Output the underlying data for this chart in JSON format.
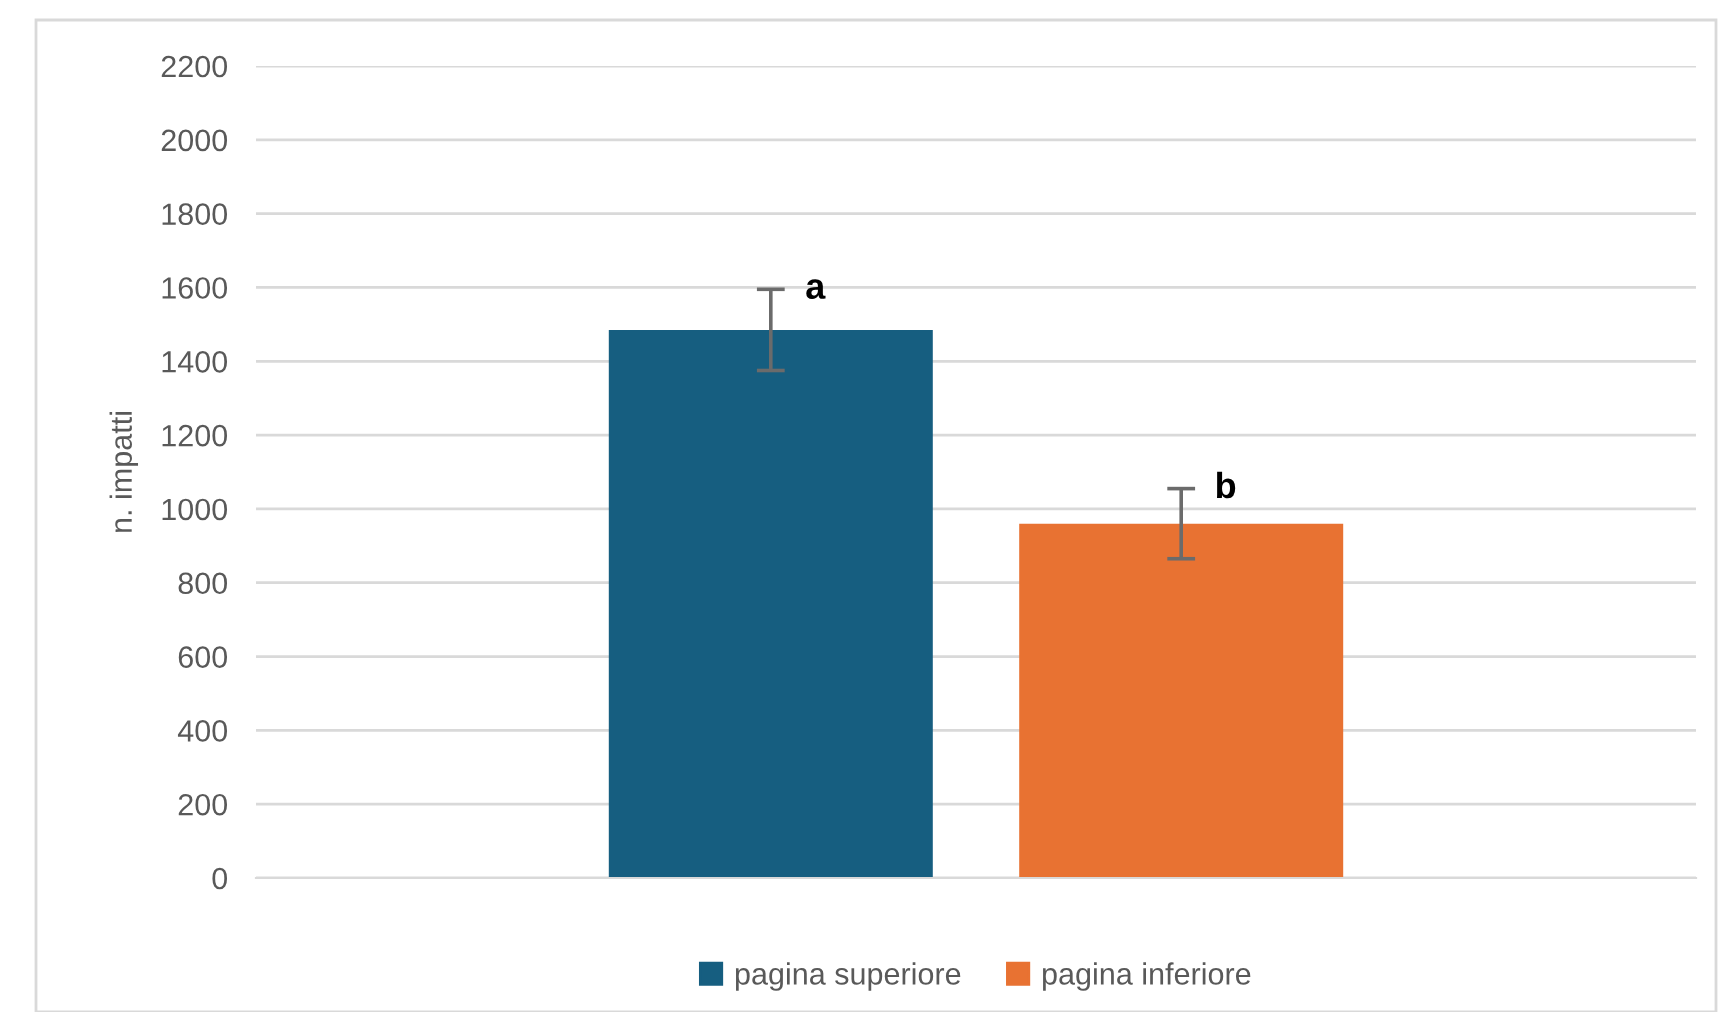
{
  "chart_data": {
    "type": "bar",
    "ylabel": "n. impatti",
    "categories": [
      null
    ],
    "series": [
      {
        "name": "pagina superiore",
        "color": "#165e80",
        "values": [
          1485
        ],
        "errors": [
          110
        ]
      },
      {
        "name": "pagina inferiore",
        "color": "#e87232",
        "values": [
          960
        ],
        "errors": [
          95
        ]
      }
    ],
    "annotations": [
      "a",
      "b"
    ],
    "ylim": [
      0,
      2200
    ],
    "yticks": [
      0,
      200,
      400,
      600,
      800,
      1000,
      1200,
      1400,
      1600,
      1800,
      2000,
      2200
    ],
    "grid": "y",
    "legend": "bottom"
  }
}
